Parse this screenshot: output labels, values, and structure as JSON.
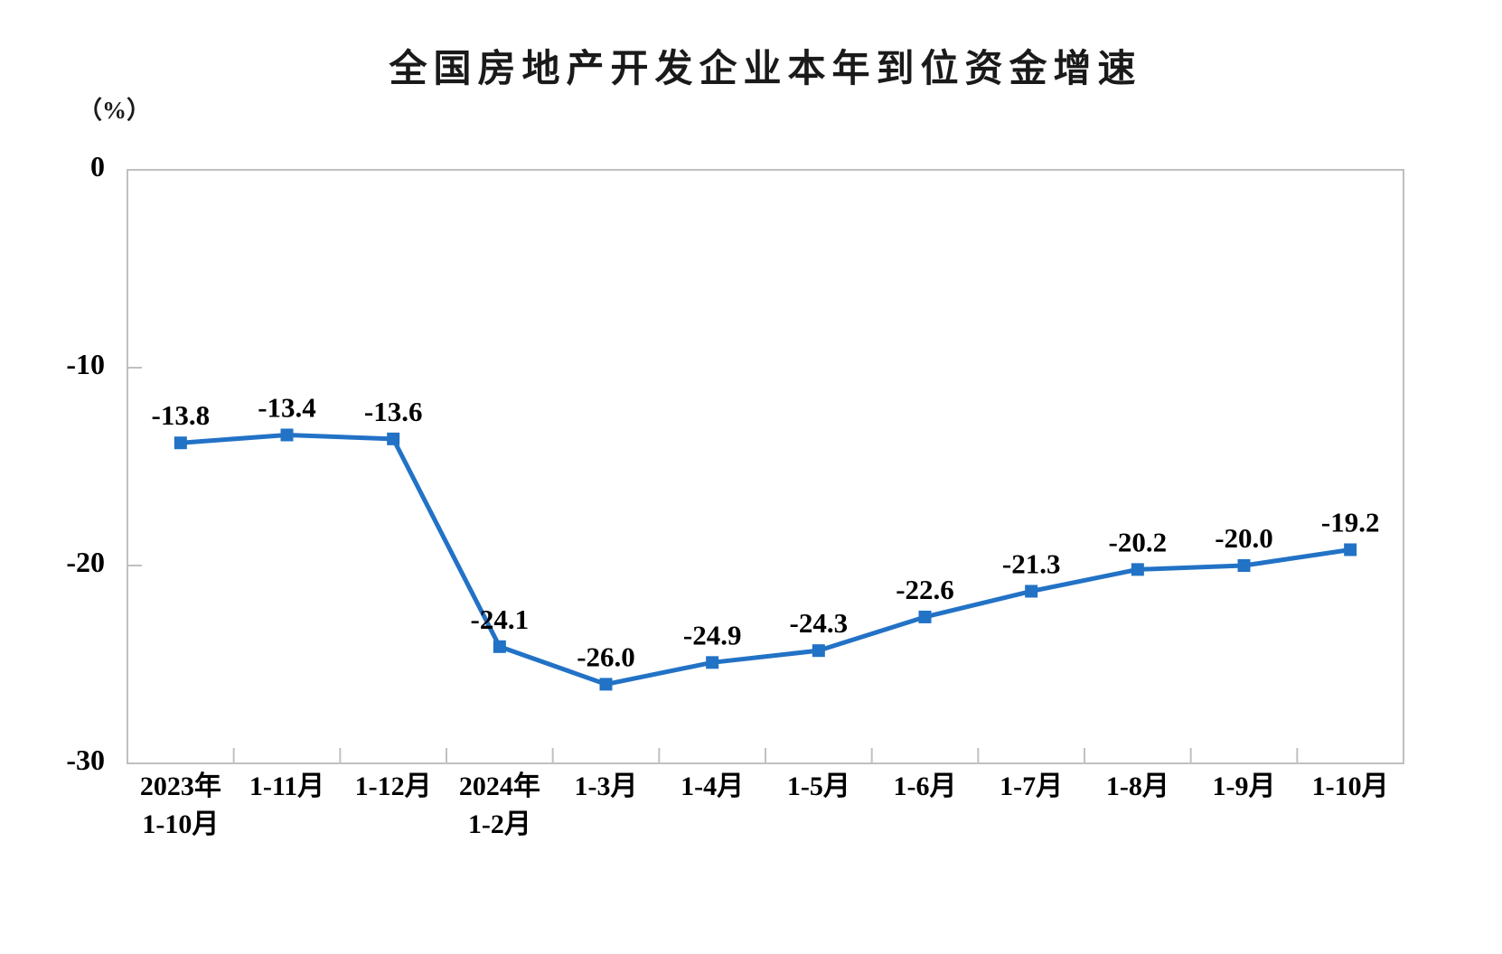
{
  "chart_data": {
    "type": "line",
    "title": "全国房地产开发企业本年到位资金增速",
    "unit_label": "（%）",
    "categories": [
      "2023年\n1-10月",
      "1-11月",
      "1-12月",
      "2024年\n1-2月",
      "1-3月",
      "1-4月",
      "1-5月",
      "1-6月",
      "1-7月",
      "1-8月",
      "1-9月",
      "1-10月"
    ],
    "values": [
      -13.8,
      -13.4,
      -13.6,
      -24.1,
      -26.0,
      -24.9,
      -24.3,
      -22.6,
      -21.3,
      -20.2,
      -20.0,
      -19.2
    ],
    "data_labels": [
      "-13.8",
      "-13.4",
      "-13.6",
      "-24.1",
      "-26.0",
      "-24.9",
      "-24.3",
      "-22.6",
      "-21.3",
      "-20.2",
      "-20.0",
      "-19.2"
    ],
    "ylim": [
      -30,
      0
    ],
    "y_ticks": [
      0,
      -10,
      -20,
      -30
    ],
    "grid": false,
    "legend": "none",
    "marker": "square",
    "colors": {
      "line": "#2272C6",
      "marker": "#2272C6",
      "axis": "#C0C0C0",
      "text": "#000000"
    }
  }
}
